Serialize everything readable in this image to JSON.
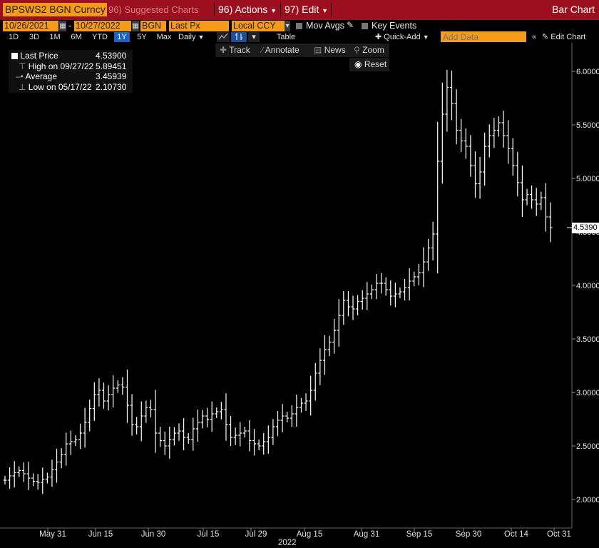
{
  "toolbar": {
    "ticker": "BPSWS2 BGN Curncy",
    "suggested": "96) Suggested Charts",
    "actions": "96) Actions",
    "edit": "97) Edit",
    "title": "Bar Chart"
  },
  "settings": {
    "start_date": "10/26/2021",
    "end_date": "10/27/2022",
    "source": "BGN",
    "field": "Last Px",
    "currency": "Local CCY",
    "mov_avgs": "Mov Avgs",
    "key_events": "Key Events",
    "table": "Table",
    "quick_add": "Quick-Add",
    "add_data_placeholder": "Add Data",
    "edit_chart": "Edit Chart",
    "periods": [
      "1D",
      "3D",
      "1M",
      "6M",
      "YTD",
      "1Y",
      "5Y",
      "Max"
    ],
    "selected_period": "1Y",
    "frequency": "Daily"
  },
  "tools": {
    "track": "Track",
    "annotate": "Annotate",
    "news": "News",
    "zoom": "Zoom",
    "reset": "Reset"
  },
  "legend": {
    "last_label": "Last Price",
    "last_value": "4.53900",
    "high_label": "High on 09/27/22",
    "high_value": "5.89451",
    "avg_label": "Average",
    "avg_value": "3.45939",
    "low_label": "Low on 05/17/22",
    "low_value": "2.10730"
  },
  "chart_data": {
    "type": "bar",
    "series_style": "OHLC",
    "ylim": [
      1.8,
      6.2
    ],
    "y_ticks": [
      "2.0000",
      "2.5000",
      "3.0000",
      "3.5000",
      "4.0000",
      "4.5000",
      "5.0000",
      "5.5000",
      "6.0000"
    ],
    "y_tick_values": [
      2.0,
      2.5,
      3.0,
      3.5,
      4.0,
      4.5,
      5.0,
      5.5,
      6.0
    ],
    "x_ticks": [
      "May 31",
      "Jun 15",
      "Jun 30",
      "Jul 15",
      "Jul 29",
      "Aug 15",
      "Aug 31",
      "Sep 15",
      "Sep 30",
      "Oct 14",
      "Oct 31"
    ],
    "x_year_label": "2022",
    "last_value_label": "4.5390",
    "colors": {
      "bars": "#ffffff",
      "background": "#000000"
    },
    "closes": [
      2.18,
      2.22,
      2.25,
      2.27,
      2.24,
      2.2,
      2.17,
      2.16,
      2.19,
      2.21,
      2.28,
      2.35,
      2.42,
      2.52,
      2.54,
      2.56,
      2.62,
      2.72,
      2.85,
      2.98,
      3.02,
      2.92,
      2.98,
      3.04,
      3.07,
      3.05,
      2.88,
      2.7,
      2.68,
      2.78,
      2.86,
      2.84,
      2.62,
      2.55,
      2.5,
      2.56,
      2.62,
      2.64,
      2.58,
      2.56,
      2.66,
      2.72,
      2.78,
      2.75,
      2.8,
      2.82,
      2.84,
      2.7,
      2.58,
      2.6,
      2.62,
      2.64,
      2.55,
      2.52,
      2.5,
      2.54,
      2.58,
      2.68,
      2.74,
      2.78,
      2.76,
      2.8,
      2.86,
      2.9,
      2.92,
      3.02,
      3.18,
      3.3,
      3.4,
      3.47,
      3.58,
      3.72,
      3.86,
      3.8,
      3.78,
      3.85,
      3.88,
      3.92,
      3.96,
      4.02,
      4.02,
      3.96,
      3.9,
      3.92,
      3.94,
      3.98,
      4.04,
      4.08,
      4.12,
      4.22,
      4.35,
      4.48,
      5.16,
      5.6,
      5.85,
      5.7,
      5.45,
      5.35,
      5.3,
      5.12,
      4.95,
      5.06,
      5.3,
      5.4,
      5.45,
      5.52,
      5.4,
      5.28,
      5.12,
      4.96,
      4.8,
      4.85,
      4.8,
      4.76,
      4.82,
      4.64,
      4.54
    ]
  }
}
